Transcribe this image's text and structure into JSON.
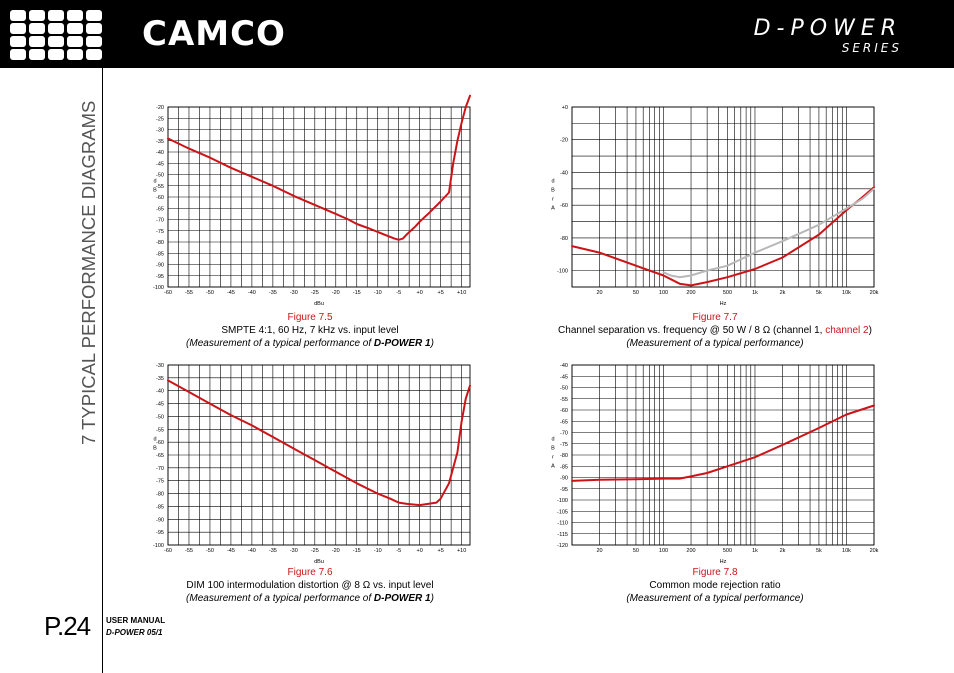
{
  "header": {
    "brand": "CAMCO",
    "product": "D-POWER",
    "series": "SERIES"
  },
  "sidebar": {
    "section_title": "7 TYPICAL PERFORMANCE DIAGRAMS"
  },
  "footer": {
    "page": "P.24",
    "manual_label": "USER MANUAL",
    "manual_doc": "D-POWER 05/1"
  },
  "captions": {
    "fig5": {
      "number": "Figure 7.5",
      "title": "SMPTE 4:1, 60 Hz, 7 kHz vs. input level",
      "note_pre": "(Measurement of a typical performance of ",
      "note_bold": "D-POWER 1",
      "note_post": ")"
    },
    "fig6": {
      "number": "Figure 7.6",
      "title": "DIM 100 intermodulation distortion @ 8 Ω vs. input level",
      "note_pre": "(Measurement of a typical performance of ",
      "note_bold": "D-POWER 1",
      "note_post": ")"
    },
    "fig7": {
      "number": "Figure 7.7",
      "title_pre": "Channel separation vs. frequency @ 50 W / 8 Ω (channel 1, ",
      "title_red": "channel 2",
      "title_post": ")",
      "note": "(Measurement of a typical performance)"
    },
    "fig8": {
      "number": "Figure 7.8",
      "title": "Common mode rejection ratio",
      "note": "(Measurement of a typical performance)"
    }
  },
  "colors": {
    "accent": "#cc1418",
    "secondary": "#b8b8b8",
    "header_bg": "#000000"
  },
  "chart_data": [
    {
      "id": "fig5",
      "type": "line",
      "title": "SMPTE 4:1, 60 Hz, 7 kHz vs. input level",
      "xlabel": "dBu",
      "ylabel": "dB",
      "xscale": "linear",
      "xlim": [
        -60,
        12
      ],
      "ylim": [
        -100,
        -20
      ],
      "xticks": [
        -60,
        -55,
        -50,
        -45,
        -40,
        -35,
        -30,
        -25,
        -20,
        -15,
        -10,
        -5,
        0,
        5,
        10
      ],
      "xtick_labels": [
        "-60",
        "-55",
        "-50",
        "-45",
        "-40",
        "-35",
        "-30",
        "-25",
        "-20",
        "-15",
        "-10",
        "-5",
        "+0",
        "+5",
        "+10"
      ],
      "yticks": [
        -20,
        -25,
        -30,
        -35,
        -40,
        -45,
        -50,
        -55,
        -60,
        -65,
        -70,
        -75,
        -80,
        -85,
        -90,
        -95,
        -100
      ],
      "series": [
        {
          "name": "SMPTE",
          "color": "#cc1418",
          "x": [
            -60,
            -55,
            -50,
            -45,
            -40,
            -35,
            -30,
            -25,
            -20,
            -17,
            -15,
            -12,
            -10,
            -8,
            -6,
            -5,
            -4,
            -3,
            -1,
            0,
            2,
            5,
            7,
            8,
            9,
            10,
            11,
            12
          ],
          "y": [
            -34,
            -38.5,
            -42.5,
            -47,
            -51,
            -55,
            -59.5,
            -63.5,
            -67.5,
            -70,
            -72,
            -74,
            -75.5,
            -77,
            -78.5,
            -79,
            -78.5,
            -76.5,
            -73,
            -71,
            -67.5,
            -62,
            -58,
            -45,
            -35,
            -27,
            -20,
            -15
          ]
        }
      ]
    },
    {
      "id": "fig6",
      "type": "line",
      "title": "DIM 100 intermodulation distortion @ 8 Ω vs. input level",
      "xlabel": "dBu",
      "ylabel": "dB",
      "xscale": "linear",
      "xlim": [
        -60,
        12
      ],
      "ylim": [
        -100,
        -30
      ],
      "xticks": [
        -60,
        -55,
        -50,
        -45,
        -40,
        -35,
        -30,
        -25,
        -20,
        -15,
        -10,
        -5,
        0,
        5,
        10
      ],
      "xtick_labels": [
        "-60",
        "-55",
        "-50",
        "-45",
        "-40",
        "-35",
        "-30",
        "-25",
        "-20",
        "-15",
        "-10",
        "-5",
        "+0",
        "+5",
        "+10"
      ],
      "yticks": [
        -30,
        -35,
        -40,
        -45,
        -50,
        -55,
        -60,
        -65,
        -70,
        -75,
        -80,
        -85,
        -90,
        -95,
        -100
      ],
      "series": [
        {
          "name": "DIM 100",
          "color": "#cc1418",
          "x": [
            -60,
            -55,
            -50,
            -45,
            -40,
            -35,
            -30,
            -25,
            -20,
            -15,
            -10,
            -7,
            -5,
            -3,
            0,
            2,
            4,
            5,
            7,
            9,
            10,
            11,
            12
          ],
          "y": [
            -36,
            -40.5,
            -45,
            -49.5,
            -53.5,
            -58,
            -62.5,
            -67,
            -71.5,
            -76,
            -80,
            -82,
            -83.5,
            -84,
            -84.5,
            -84,
            -83.5,
            -82,
            -76,
            -64,
            -52,
            -43,
            -38
          ]
        }
      ]
    },
    {
      "id": "fig7",
      "type": "line",
      "title": "Channel separation vs. frequency @ 50 W / 8 Ω",
      "xlabel": "Hz",
      "ylabel": "dBr A",
      "xscale": "log",
      "xlim": [
        10,
        20000
      ],
      "ylim": [
        -110,
        0
      ],
      "xticks": [
        20,
        50,
        100,
        200,
        500,
        1000,
        2000,
        5000,
        10000,
        20000
      ],
      "xtick_labels": [
        "20",
        "50",
        "100",
        "200",
        "500",
        "1k",
        "2k",
        "5k",
        "10k",
        "20k"
      ],
      "yticks": [
        0,
        -20,
        -40,
        -60,
        -80,
        -100
      ],
      "ytick_labels": [
        "+0",
        "-20",
        "-40",
        "-60",
        "-80",
        "-100"
      ],
      "series": [
        {
          "name": "channel 1",
          "color": "#cc1418",
          "x": [
            10,
            20,
            50,
            100,
            150,
            200,
            300,
            500,
            1000,
            2000,
            5000,
            10000,
            15000,
            20000
          ],
          "y": [
            -85,
            -89,
            -97,
            -103,
            -108,
            -109,
            -107,
            -104,
            -99,
            -92,
            -78,
            -63,
            -55,
            -49
          ]
        },
        {
          "name": "channel 2",
          "color": "#b8b8b8",
          "x": [
            100,
            120,
            150,
            200,
            300,
            500,
            1000,
            2000,
            5000,
            10000,
            15000,
            20000
          ],
          "y": [
            -101,
            -103,
            -104,
            -103,
            -100,
            -97,
            -89,
            -82,
            -72,
            -62,
            -56,
            -50
          ]
        }
      ]
    },
    {
      "id": "fig8",
      "type": "line",
      "title": "Common mode rejection ratio",
      "xlabel": "Hz",
      "ylabel": "dBr A",
      "xscale": "log",
      "xlim": [
        10,
        20000
      ],
      "ylim": [
        -120,
        -40
      ],
      "xticks": [
        20,
        50,
        100,
        200,
        500,
        1000,
        2000,
        5000,
        10000,
        20000
      ],
      "xtick_labels": [
        "20",
        "50",
        "100",
        "200",
        "500",
        "1k",
        "2k",
        "5k",
        "10k",
        "20k"
      ],
      "yticks": [
        -40,
        -45,
        -50,
        -55,
        -60,
        -65,
        -70,
        -75,
        -80,
        -85,
        -90,
        -95,
        -100,
        -105,
        -110,
        -115,
        -120
      ],
      "series": [
        {
          "name": "CMRR",
          "color": "#cc1418",
          "x": [
            10,
            20,
            50,
            100,
            150,
            200,
            300,
            500,
            1000,
            2000,
            5000,
            10000,
            20000
          ],
          "y": [
            -91.5,
            -91,
            -90.8,
            -90.5,
            -90.5,
            -89.5,
            -88,
            -85,
            -81,
            -75.5,
            -68,
            -62,
            -58
          ]
        }
      ]
    }
  ]
}
